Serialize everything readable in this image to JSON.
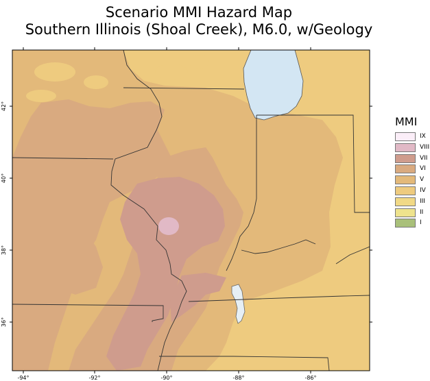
{
  "title": {
    "line1": "Scenario MMI Hazard Map",
    "line2": "Southern Illinois (Shoal Creek), M6.0, w/Geology"
  },
  "axes": {
    "x_ticks": [
      "-94°",
      "-92°",
      "-90°",
      "-88°",
      "-86°"
    ],
    "y_ticks": [
      "42°",
      "40°",
      "38°",
      "36°"
    ]
  },
  "legend": {
    "title": "MMI",
    "items": [
      {
        "label": "IX",
        "color": "#fbeef8"
      },
      {
        "label": "VIII",
        "color": "#e1b9c6"
      },
      {
        "label": "VII",
        "color": "#cf9c8d"
      },
      {
        "label": "VI",
        "color": "#d9aa80"
      },
      {
        "label": "V",
        "color": "#e3b97a"
      },
      {
        "label": "IV",
        "color": "#eecb7f"
      },
      {
        "label": "III",
        "color": "#f1d986"
      },
      {
        "label": "II",
        "color": "#eee38d"
      },
      {
        "label": "I",
        "color": "#a9c07a"
      }
    ]
  },
  "colors": {
    "lake": "#d3e6f3",
    "boundary": "#333333"
  }
}
